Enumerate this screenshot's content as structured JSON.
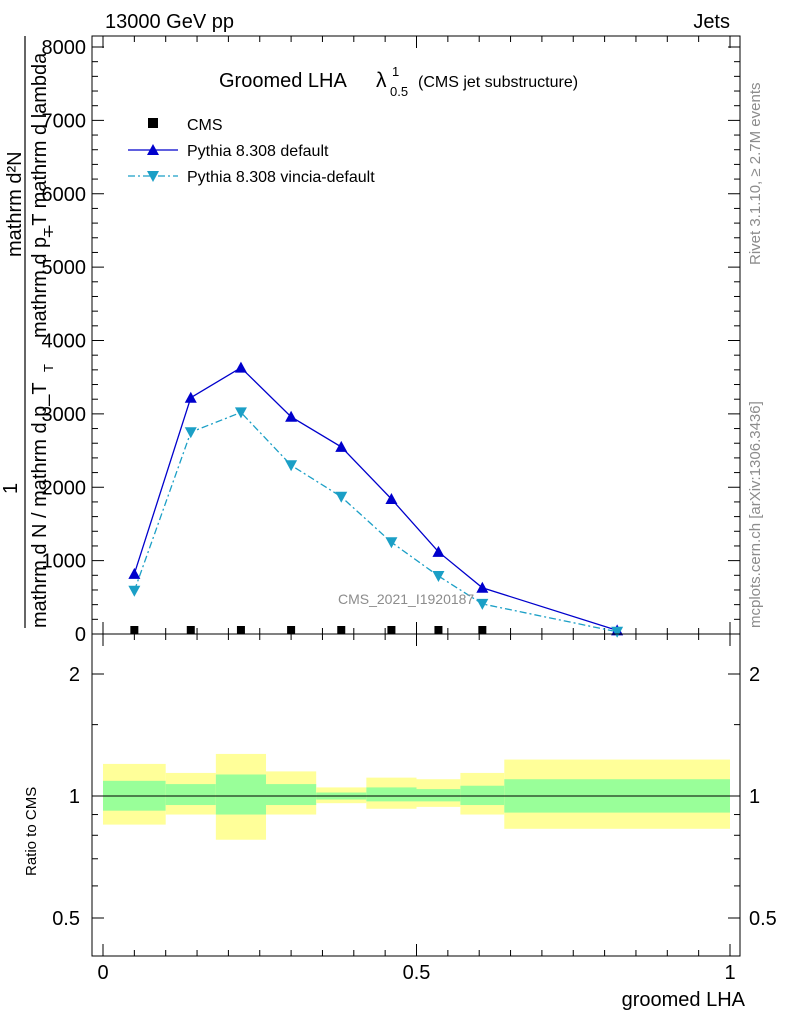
{
  "header": {
    "left": "13000 GeV pp",
    "right": "Jets"
  },
  "side_labels": {
    "rivet": "Rivet 3.1.10, ≥ 2.7M events",
    "mcplots": "mcplots.cern.ch [arXiv:1306.3436]"
  },
  "watermark": "CMS_2021_I1920187",
  "colors": {
    "cms": "#000000",
    "pythia_default": "#0000cc",
    "pythia_vincia": "#1b9fc6",
    "band_inner": "#99ff99",
    "band_outer": "#ffff99"
  },
  "chart_data": [
    {
      "type": "line",
      "title": "Groomed LHA",
      "title_symbol": "λ",
      "title_superscript": "1",
      "title_subscript": "0.5",
      "title_suffix": "(CMS jet substructure)",
      "ylabel_numerator": "mathrm d²N",
      "ylabel_numerator_lower": "mathrm d p_T mathrm d lambda",
      "ylabel_numerator_sub": "T",
      "ylabel_denominator_top": "1",
      "ylabel_denominator": "mathrm d N / mathrm d p_T",
      "ylabel_denominator_sub": "T",
      "ylim": [
        0,
        8000
      ],
      "xlim": [
        0,
        1
      ],
      "yticks": [
        {
          "value": 0,
          "label": "0"
        },
        {
          "value": 1000,
          "label": "1000"
        },
        {
          "value": 2000,
          "label": "2000"
        },
        {
          "value": 3000,
          "label": "3000"
        },
        {
          "value": 4000,
          "label": "4000"
        },
        {
          "value": 5000,
          "label": "5000"
        },
        {
          "value": 6000,
          "label": "6000"
        },
        {
          "value": 7000,
          "label": "7000"
        },
        {
          "value": 8000,
          "label": "8000"
        }
      ],
      "legend_position": "top-left",
      "series": [
        {
          "name": "CMS",
          "marker": "square",
          "x": [
            0.05,
            0.14,
            0.22,
            0.3,
            0.38,
            0.46,
            0.535,
            0.605
          ],
          "y": [
            0,
            0,
            0,
            0,
            0,
            0,
            0,
            0
          ]
        },
        {
          "name": "Pythia 8.308 default",
          "marker": "triangle-up",
          "style": "solid",
          "x": [
            0.05,
            0.14,
            0.22,
            0.3,
            0.38,
            0.46,
            0.535,
            0.605,
            0.82
          ],
          "y": [
            820,
            3220,
            3630,
            2960,
            2550,
            1840,
            1120,
            630,
            50
          ]
        },
        {
          "name": "Pythia 8.308 vincia-default",
          "marker": "triangle-down",
          "style": "dashdot",
          "x": [
            0.05,
            0.14,
            0.22,
            0.3,
            0.38,
            0.46,
            0.535,
            0.605,
            0.82
          ],
          "y": [
            590,
            2750,
            3020,
            2300,
            1870,
            1250,
            790,
            410,
            30
          ]
        }
      ]
    },
    {
      "type": "area",
      "ylabel": "Ratio to CMS",
      "xlabel": "groomed LHA",
      "log_y": true,
      "ylim": [
        0.4,
        2.5
      ],
      "xlim": [
        0,
        1
      ],
      "yticks": [
        {
          "value": 0.5,
          "label": "0.5"
        },
        {
          "value": 1,
          "label": "1"
        },
        {
          "value": 2,
          "label": "2"
        }
      ],
      "xticks": [
        {
          "value": 0,
          "label": "0"
        },
        {
          "value": 0.5,
          "label": "0.5"
        },
        {
          "value": 1,
          "label": "1"
        }
      ],
      "reference_line": 1,
      "bins": [
        {
          "x_low": 0.0,
          "x_high": 0.1,
          "inner_low": 0.92,
          "inner_high": 1.09,
          "outer_low": 0.85,
          "outer_high": 1.2
        },
        {
          "x_low": 0.1,
          "x_high": 0.18,
          "inner_low": 0.95,
          "inner_high": 1.07,
          "outer_low": 0.9,
          "outer_high": 1.14
        },
        {
          "x_low": 0.18,
          "x_high": 0.26,
          "inner_low": 0.9,
          "inner_high": 1.13,
          "outer_low": 0.78,
          "outer_high": 1.27
        },
        {
          "x_low": 0.26,
          "x_high": 0.34,
          "inner_low": 0.95,
          "inner_high": 1.07,
          "outer_low": 0.9,
          "outer_high": 1.15
        },
        {
          "x_low": 0.34,
          "x_high": 0.42,
          "inner_low": 0.98,
          "inner_high": 1.02,
          "outer_low": 0.96,
          "outer_high": 1.05
        },
        {
          "x_low": 0.42,
          "x_high": 0.5,
          "inner_low": 0.97,
          "inner_high": 1.05,
          "outer_low": 0.93,
          "outer_high": 1.11
        },
        {
          "x_low": 0.5,
          "x_high": 0.57,
          "inner_low": 0.97,
          "inner_high": 1.04,
          "outer_low": 0.94,
          "outer_high": 1.1
        },
        {
          "x_low": 0.57,
          "x_high": 0.64,
          "inner_low": 0.95,
          "inner_high": 1.06,
          "outer_low": 0.9,
          "outer_high": 1.14
        },
        {
          "x_low": 0.64,
          "x_high": 1.0,
          "inner_low": 0.91,
          "inner_high": 1.1,
          "outer_low": 0.83,
          "outer_high": 1.23
        }
      ]
    }
  ]
}
